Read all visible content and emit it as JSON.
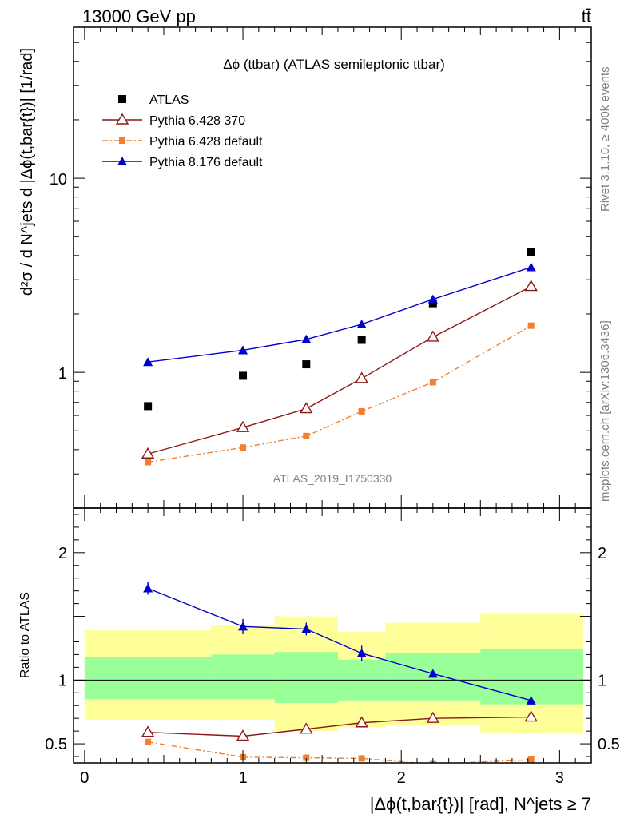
{
  "header": {
    "left": "13000 GeV pp",
    "right": "tt̄"
  },
  "side_labels": {
    "rivet": "Rivet 3.1.10, ≥ 400k events",
    "mcplots": "mcplots.cern.ch [arXiv:1306.3436]"
  },
  "chart_data": {
    "type": "scatter",
    "title": "Δϕ (ttbar) (ATLAS semileptonic ttbar)",
    "watermark": "ATLAS_2019_I1750330",
    "xlabel": "|Δϕ(t,bar{t})| [rad], N^jets ≥ 7",
    "main_panel": {
      "ylabel": "d²σ / d N^jets d |Δϕ(t,bar{t})| [1/rad]",
      "yscale": "log",
      "ylim": [
        0.2,
        60
      ],
      "ytick_labels": [
        "1",
        "10"
      ],
      "xlim": [
        -0.07,
        3.2
      ],
      "x": [
        0.4,
        1.0,
        1.4,
        1.75,
        2.2,
        2.82
      ],
      "series": [
        {
          "name": "ATLAS",
          "style": "data",
          "color": "#000000",
          "values": [
            0.67,
            0.96,
            1.1,
            1.47,
            2.27,
            4.15
          ]
        },
        {
          "name": "Pythia 6.428 370",
          "style": "open-triangle",
          "color": "#8b1a1a",
          "values": [
            0.38,
            0.52,
            0.65,
            0.93,
            1.52,
            2.77
          ]
        },
        {
          "name": "Pythia 6.428 default",
          "style": "square-dashdot",
          "color": "#f07f30",
          "values": [
            0.345,
            0.41,
            0.47,
            0.63,
            0.89,
            1.74
          ]
        },
        {
          "name": "Pythia 8.176 default",
          "style": "filled-triangle",
          "color": "#0000cc",
          "values": [
            1.13,
            1.3,
            1.48,
            1.77,
            2.38,
            3.48
          ]
        }
      ]
    },
    "ratio_panel": {
      "ylabel": "Ratio to ATLAS",
      "ylim": [
        0.35,
        2.35
      ],
      "ytick_labels": [
        "0.5",
        "1",
        "2"
      ],
      "xtick_labels": [
        "0",
        "1",
        "2",
        "3"
      ],
      "bands": {
        "edges": [
          0.0,
          0.8,
          1.2,
          1.6,
          1.9,
          2.5,
          3.15
        ],
        "yellow_low": [
          0.69,
          0.69,
          0.6,
          0.63,
          0.65,
          0.58
        ],
        "yellow_high": [
          1.39,
          1.43,
          1.5,
          1.38,
          1.45,
          1.52
        ],
        "green_low": [
          0.85,
          0.85,
          0.82,
          0.84,
          0.84,
          0.81
        ],
        "green_high": [
          1.18,
          1.2,
          1.22,
          1.16,
          1.21,
          1.24
        ]
      },
      "series": [
        {
          "name": "Pythia 6.428 370",
          "values": [
            0.59,
            0.56,
            0.615,
            0.665,
            0.7,
            0.71
          ],
          "errors": [
            0.01,
            0.01,
            0.01,
            0.01,
            0.01,
            0.01
          ]
        },
        {
          "name": "Pythia 6.428 default",
          "values": [
            0.515,
            0.395,
            0.39,
            0.385,
            0.34,
            0.375
          ],
          "errors": [
            0.01,
            0.01,
            0.01,
            0.01,
            0.01,
            0.01
          ]
        },
        {
          "name": "Pythia 8.176 default",
          "values": [
            1.72,
            1.42,
            1.4,
            1.21,
            1.05,
            0.84
          ],
          "errors": [
            0.05,
            0.06,
            0.05,
            0.06,
            0.03,
            0.01
          ]
        }
      ]
    }
  }
}
